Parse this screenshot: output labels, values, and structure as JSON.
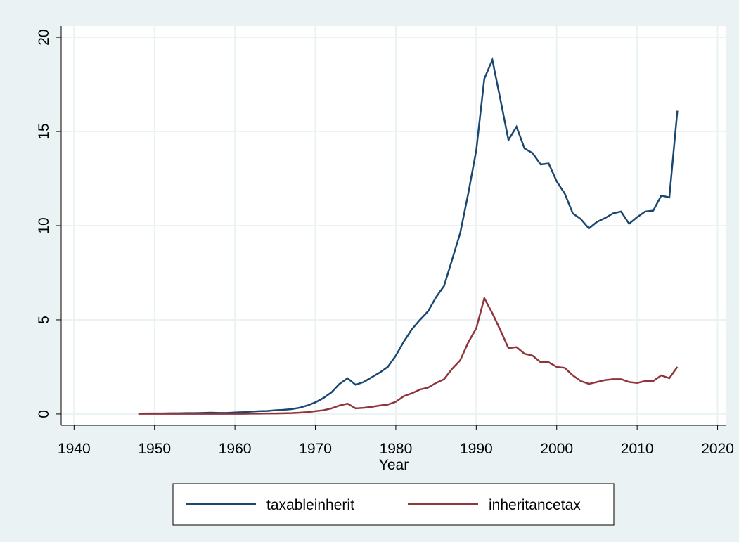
{
  "chart_data": {
    "type": "line",
    "x_label": "Year",
    "x": [
      1948,
      1949,
      1950,
      1951,
      1952,
      1953,
      1954,
      1955,
      1956,
      1957,
      1958,
      1959,
      1960,
      1961,
      1962,
      1963,
      1964,
      1965,
      1966,
      1967,
      1968,
      1969,
      1970,
      1971,
      1972,
      1973,
      1974,
      1975,
      1976,
      1977,
      1978,
      1979,
      1980,
      1981,
      1982,
      1983,
      1984,
      1985,
      1986,
      1987,
      1988,
      1989,
      1990,
      1991,
      1992,
      1993,
      1994,
      1995,
      1996,
      1997,
      1998,
      1999,
      2000,
      2001,
      2002,
      2003,
      2004,
      2005,
      2006,
      2007,
      2008,
      2009,
      2010,
      2011,
      2012,
      2013,
      2014,
      2015
    ],
    "series": [
      {
        "name": "taxableinherit",
        "color": "#1a476f",
        "values": [
          0.02,
          0.03,
          0.03,
          0.03,
          0.04,
          0.04,
          0.05,
          0.05,
          0.06,
          0.07,
          0.06,
          0.06,
          0.08,
          0.1,
          0.13,
          0.15,
          0.16,
          0.2,
          0.22,
          0.26,
          0.33,
          0.45,
          0.62,
          0.85,
          1.15,
          1.6,
          1.9,
          1.55,
          1.7,
          1.95,
          2.2,
          2.5,
          3.1,
          3.85,
          4.5,
          5.0,
          5.45,
          6.2,
          6.8,
          8.2,
          9.6,
          11.7,
          14.0,
          17.8,
          18.8,
          16.7,
          14.55,
          15.25,
          14.1,
          13.85,
          13.25,
          13.3,
          12.35,
          11.7,
          10.65,
          10.35,
          9.85,
          10.2,
          10.4,
          10.65,
          10.75,
          10.1,
          10.45,
          10.75,
          10.8,
          11.6,
          11.5,
          16.1
        ]
      },
      {
        "name": "inheritancetax",
        "color": "#90353b",
        "values": [
          0.01,
          0.01,
          0.01,
          0.01,
          0.01,
          0.01,
          0.01,
          0.01,
          0.01,
          0.01,
          0.01,
          0.01,
          0.01,
          0.01,
          0.02,
          0.02,
          0.03,
          0.03,
          0.04,
          0.05,
          0.07,
          0.1,
          0.15,
          0.2,
          0.3,
          0.45,
          0.55,
          0.3,
          0.33,
          0.38,
          0.45,
          0.5,
          0.65,
          0.95,
          1.1,
          1.3,
          1.4,
          1.65,
          1.85,
          2.4,
          2.85,
          3.8,
          4.55,
          6.15,
          5.35,
          4.45,
          3.5,
          3.55,
          3.2,
          3.1,
          2.75,
          2.75,
          2.5,
          2.45,
          2.05,
          1.75,
          1.6,
          1.7,
          1.8,
          1.85,
          1.85,
          1.7,
          1.65,
          1.75,
          1.75,
          2.05,
          1.9,
          2.5
        ]
      }
    ],
    "xlim": [
      1938.4,
      2021
    ],
    "xticks": [
      1940,
      1950,
      1960,
      1970,
      1980,
      1990,
      2000,
      2010,
      2020
    ],
    "ylim": [
      -0.6,
      20.6
    ],
    "yticks": [
      0,
      5,
      10,
      15,
      20
    ],
    "grid": true,
    "legend": "bottom"
  }
}
